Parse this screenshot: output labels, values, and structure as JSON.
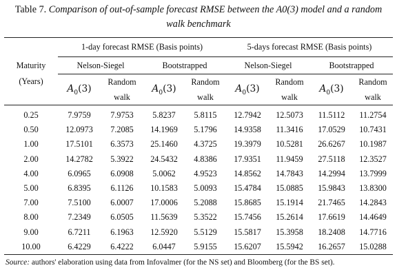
{
  "caption": {
    "label": "Table 7.",
    "text": "Comparison of out-of-sample forecast RMSE between the A0(3) model and a random walk benchmark"
  },
  "header": {
    "maturity_line1": "Maturity",
    "maturity_line2": "(Years)",
    "group_1day": "1-day forecast RMSE (Basis points)",
    "group_5day": "5-days forecast RMSE (Basis points)",
    "sub_ns": "Nelson-Siegel",
    "sub_bs": "Bootstrapped",
    "model_symbol": "A",
    "model_subscript": "0",
    "model_arg": "(3)",
    "rw_line1": "Random",
    "rw_line2": "walk"
  },
  "rows": [
    {
      "maturity": "0.25",
      "v": [
        "7.9759",
        "7.9753",
        "5.8237",
        "5.8115",
        "12.7942",
        "12.5073",
        "11.5112",
        "11.2754"
      ]
    },
    {
      "maturity": "0.50",
      "v": [
        "12.0973",
        "7.2085",
        "14.1969",
        "5.1796",
        "14.9358",
        "11.3416",
        "17.0529",
        "10.7431"
      ]
    },
    {
      "maturity": "1.00",
      "v": [
        "17.5101",
        "6.3573",
        "25.1460",
        "4.3725",
        "19.3979",
        "10.5281",
        "26.6267",
        "10.1987"
      ]
    },
    {
      "maturity": "2.00",
      "v": [
        "14.2782",
        "5.3922",
        "24.5432",
        "4.8386",
        "17.9351",
        "11.9459",
        "27.5118",
        "12.3527"
      ]
    },
    {
      "maturity": "4.00",
      "v": [
        "6.0965",
        "6.0908",
        "5.0062",
        "4.9523",
        "14.8562",
        "14.7843",
        "14.2994",
        "13.7999"
      ]
    },
    {
      "maturity": "5.00",
      "v": [
        "6.8395",
        "6.1126",
        "10.1583",
        "5.0093",
        "15.4784",
        "15.0885",
        "15.9843",
        "13.8300"
      ]
    },
    {
      "maturity": "7.00",
      "v": [
        "7.5100",
        "6.0007",
        "17.0006",
        "5.2088",
        "15.8685",
        "15.1914",
        "21.7465",
        "14.2843"
      ]
    },
    {
      "maturity": "8.00",
      "v": [
        "7.2349",
        "6.0505",
        "11.5639",
        "5.3522",
        "15.7456",
        "15.2614",
        "17.6619",
        "14.4649"
      ]
    },
    {
      "maturity": "9.00",
      "v": [
        "6.7211",
        "6.1963",
        "12.5920",
        "5.5129",
        "15.5817",
        "15.3958",
        "18.2408",
        "14.7716"
      ]
    },
    {
      "maturity": "10.00",
      "v": [
        "6.4229",
        "6.4222",
        "6.0447",
        "5.9155",
        "15.6207",
        "15.5942",
        "16.2657",
        "15.0288"
      ]
    }
  ],
  "source": {
    "label": "Source:",
    "text": " authors' elaboration using data from Infovalmer (for the NS set) and Bloomberg (for the BS set)."
  }
}
